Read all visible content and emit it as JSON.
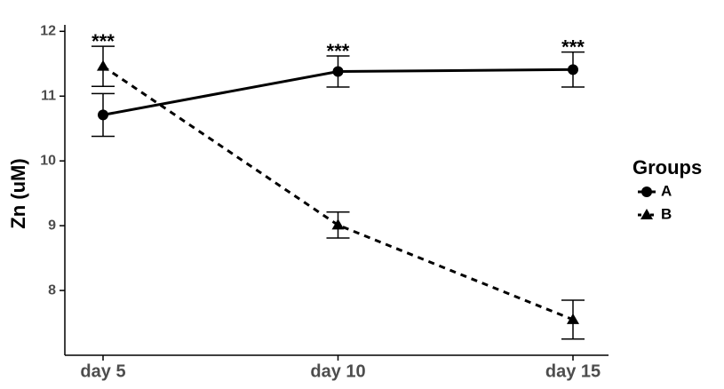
{
  "chart_data": {
    "type": "line",
    "y_label": "Zn (uM)",
    "categories": [
      "day 5",
      "day 10",
      "day 15"
    ],
    "ylim": [
      7,
      12.1
    ],
    "yticks": [
      8,
      9,
      10,
      11,
      12
    ],
    "annotations": [
      "***",
      "***",
      "***"
    ],
    "legend_title": "Groups",
    "legend": "right",
    "series": [
      {
        "name": "A",
        "color": "#000000",
        "marker": "circle",
        "line_style": "solid",
        "values": [
          10.71,
          11.38,
          11.41
        ],
        "errors": [
          0.33,
          0.24,
          0.27
        ]
      },
      {
        "name": "B",
        "color": "#000000",
        "marker": "triangle",
        "line_style": "dashed",
        "values": [
          11.46,
          9.01,
          7.55
        ],
        "errors": [
          0.31,
          0.2,
          0.3
        ]
      }
    ]
  }
}
